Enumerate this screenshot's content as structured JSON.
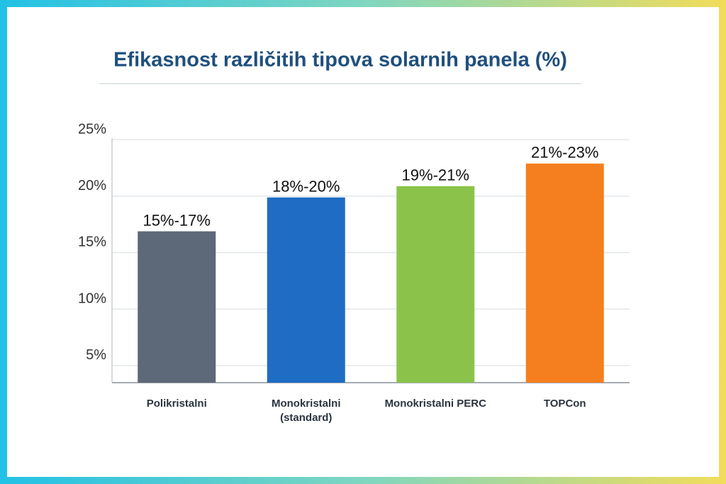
{
  "chart_data": {
    "type": "bar",
    "title": "Efikasnost različitih tipova solarnih panela (%)",
    "categories": [
      "Polikristalni",
      "Monokristalni\n(standard)",
      "Monokristalni PERC",
      "TOPCon"
    ],
    "values": [
      16,
      19,
      20,
      22
    ],
    "value_labels": [
      "15%-17%",
      "18%-20%",
      "19%-21%",
      "21%-23%"
    ],
    "colors": [
      "#5d6878",
      "#1e6cc4",
      "#8bc34a",
      "#f57f1f"
    ],
    "ylim": [
      2.6,
      25
    ],
    "yticks": [
      {
        "value": 5,
        "label": "5%"
      },
      {
        "value": 10,
        "label": "10%"
      },
      {
        "value": 15,
        "label": "15%"
      },
      {
        "value": 20,
        "label": "20%"
      },
      {
        "value": 25,
        "label": "25%"
      }
    ],
    "grid": true
  }
}
